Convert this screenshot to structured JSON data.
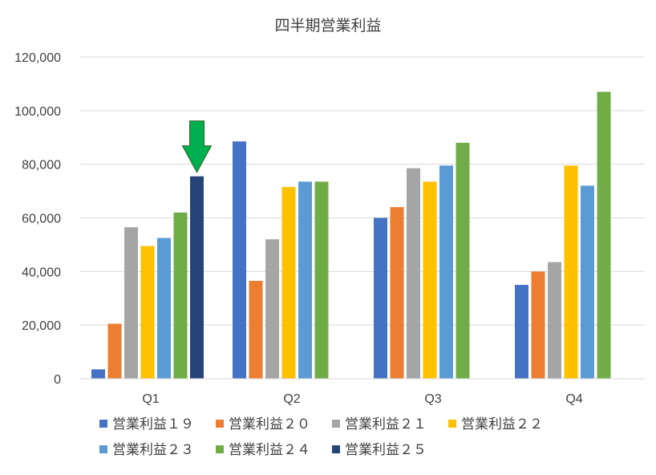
{
  "chart_data": {
    "type": "bar",
    "title": "四半期営業利益",
    "categories": [
      "Q1",
      "Q2",
      "Q3",
      "Q4"
    ],
    "ylim": [
      0,
      120000
    ],
    "yticks": [
      0,
      20000,
      40000,
      60000,
      80000,
      100000,
      120000
    ],
    "ytick_labels": [
      "0",
      "20,000",
      "40,000",
      "60,000",
      "80,000",
      "100,000",
      "120,000"
    ],
    "grid": true,
    "legend_position": "bottom",
    "series": [
      {
        "name": "営業利益１９",
        "color": "#4472c4",
        "values": [
          3500,
          88500,
          60000,
          35000
        ]
      },
      {
        "name": "営業利益２０",
        "color": "#ed7d31",
        "values": [
          20500,
          36500,
          64000,
          40000
        ]
      },
      {
        "name": "営業利益２１",
        "color": "#a5a5a5",
        "values": [
          56500,
          52000,
          78500,
          43500
        ]
      },
      {
        "name": "営業利益２２",
        "color": "#ffc000",
        "values": [
          49500,
          71500,
          73500,
          79500
        ]
      },
      {
        "name": "営業利益２３",
        "color": "#5b9bd5",
        "values": [
          52500,
          73500,
          79500,
          72000
        ]
      },
      {
        "name": "営業利益２４",
        "color": "#70ad47",
        "values": [
          62000,
          73500,
          88000,
          107000
        ]
      },
      {
        "name": "営業利益２５",
        "color": "#264478",
        "values": [
          75500,
          null,
          null,
          null
        ]
      }
    ],
    "annotation": {
      "type": "arrow",
      "color": "#00b050",
      "points_to": {
        "category": "Q1",
        "series": "営業利益２５"
      }
    }
  }
}
